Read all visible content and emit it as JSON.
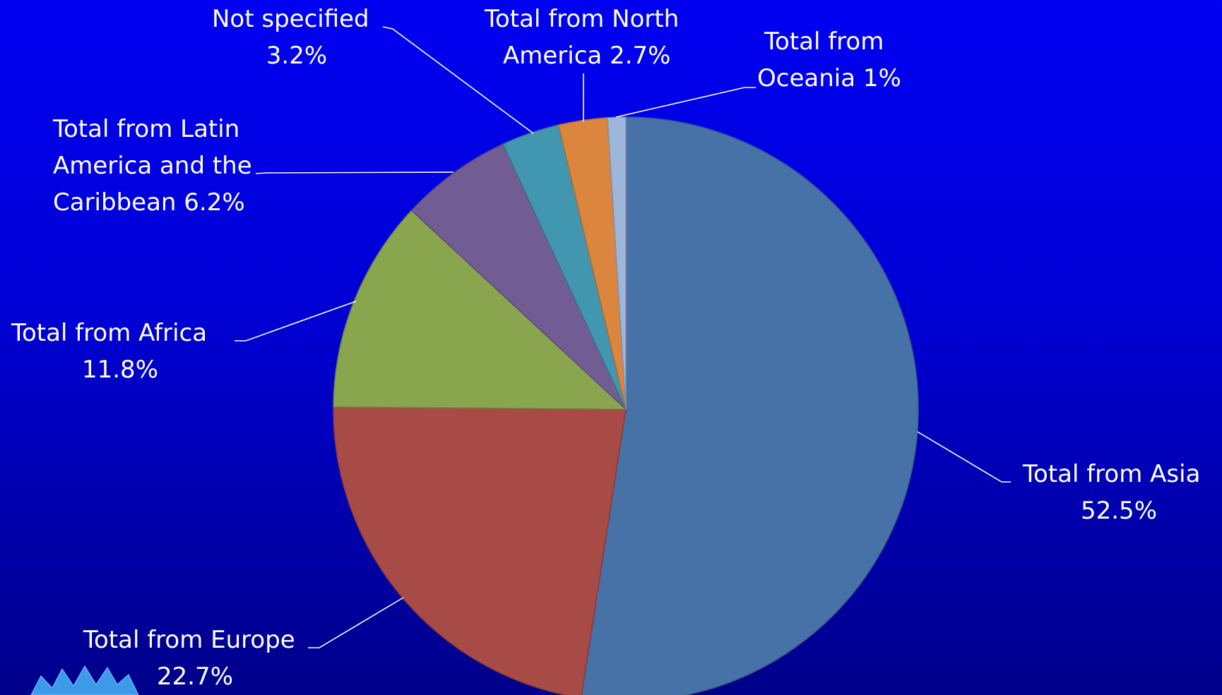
{
  "chart_data": {
    "type": "pie",
    "slices": [
      {
        "label": "Total from Asia",
        "value": 52.5,
        "value_label": "52.5%",
        "color": "#4672a7"
      },
      {
        "label": "Total from Europe",
        "value": 22.7,
        "value_label": "22.7%",
        "color": "#a84a46"
      },
      {
        "label": "Total from Africa",
        "value": 11.8,
        "value_label": "11.8%",
        "color": "#89a54e"
      },
      {
        "label": "Total from Latin America and the Caribbean",
        "value": 6.2,
        "value_label": "6.2%",
        "color": "#715c93"
      },
      {
        "label": "Not specified",
        "value": 3.2,
        "value_label": "3.2%",
        "color": "#4197af"
      },
      {
        "label": "Total from North America",
        "value": 2.7,
        "value_label": "2.7%",
        "color": "#dc853e"
      },
      {
        "label": "Total from Oceania",
        "value": 1,
        "value_label": "1%",
        "color": "#9eb6d9"
      }
    ],
    "start_angle_deg": 0,
    "direction": "clockwise",
    "legend": "none",
    "data_labels": "outside with leader lines"
  },
  "background": {
    "top_color": "#0000f2",
    "bottom_color": "#00008a"
  },
  "text_color": "#ffffff"
}
